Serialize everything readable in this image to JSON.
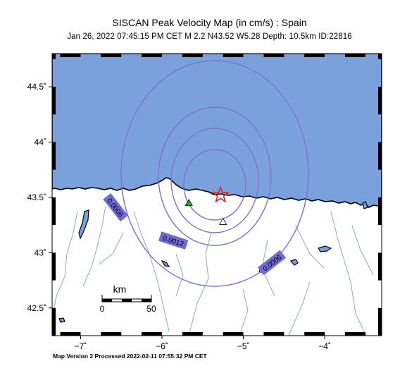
{
  "title": "SISCAN Peak Velocity Map (in cm/s) : Spain",
  "subtitle": "Jan 26, 2022 07:45:15 PM CET    M 2.2    N43.52 W5.28   Depth: 10.5km   ID:22816",
  "footer": "Map Version 2 Processed 2022-02-11 07:55:32 PM CET",
  "map": {
    "lon_range": [
      -7.35,
      -3.3
    ],
    "lat_range": [
      42.25,
      44.8
    ],
    "lat_ticks": [
      {
        "value": 44.5,
        "label": "44.5˚"
      },
      {
        "value": 44.0,
        "label": "44˚"
      },
      {
        "value": 43.5,
        "label": "43.5˚"
      },
      {
        "value": 43.0,
        "label": "43˚"
      },
      {
        "value": 42.5,
        "label": "42.5˚"
      }
    ],
    "lon_ticks": [
      {
        "value": -7,
        "label": "−7˚"
      },
      {
        "value": -6,
        "label": "−6˚"
      },
      {
        "value": -5,
        "label": "−5˚"
      },
      {
        "value": -4,
        "label": "−4˚"
      }
    ],
    "colors": {
      "sea": "#7aa1dc",
      "land": "#ffffff",
      "river": "#8ea6cf",
      "contour": "#7a74cc",
      "label_bg": "#6f6ad9",
      "epicenter": "#e02020",
      "station_green": "#22aa22"
    },
    "epicenter": {
      "lon": -5.28,
      "lat": 43.52
    },
    "stations": [
      {
        "lon": -5.67,
        "lat": 43.45,
        "type": "green-triangle"
      },
      {
        "lon": -5.25,
        "lat": 43.28,
        "type": "white-triangle"
      }
    ],
    "contour_labels": [
      {
        "text": "0.0006",
        "lon": -6.57,
        "lat": 43.41,
        "rotate": 52
      },
      {
        "text": "0.0012",
        "lon": -5.86,
        "lat": 43.11,
        "rotate": 18
      },
      {
        "text": "0.0006",
        "lon": -4.65,
        "lat": 42.91,
        "rotate": -38
      }
    ],
    "scale_bar": {
      "unit": "km",
      "start_label": "0",
      "end_label": "50"
    }
  }
}
